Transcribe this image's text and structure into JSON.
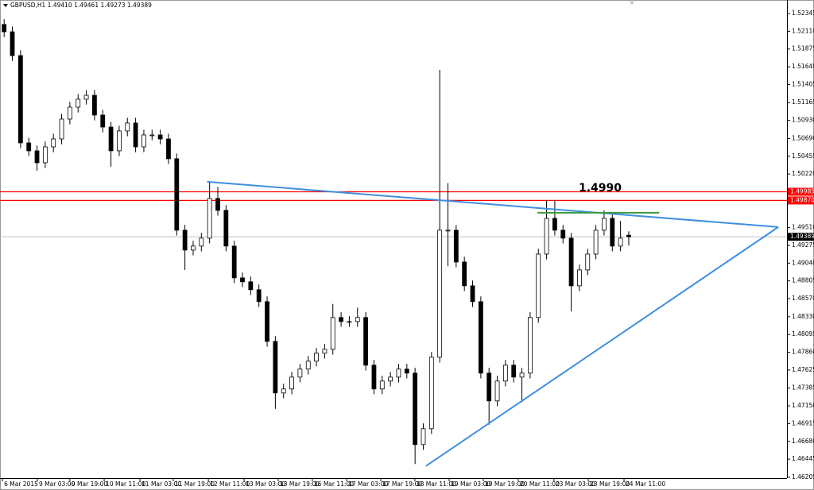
{
  "chart_data": {
    "type": "candlestick",
    "header": "GBPUSD,H1  1.49410 1.49461 1.49273 1.49389",
    "annotation": "1.4990",
    "xlim": [
      -2,
      381
    ],
    "ylim": [
      1.46194,
      1.52524
    ],
    "x": [
      0,
      4,
      8,
      12,
      16,
      20,
      24,
      28,
      32,
      36,
      40,
      44,
      48,
      52,
      56,
      60,
      64,
      68,
      72,
      76,
      80,
      84,
      88,
      92,
      96,
      100,
      104,
      108,
      112,
      116,
      120,
      124,
      128,
      132,
      136,
      140,
      144,
      148,
      152,
      156,
      160,
      164,
      168,
      172,
      176,
      180,
      184,
      188,
      192,
      196,
      200,
      204,
      208,
      212,
      216,
      220,
      224,
      228,
      232,
      236,
      240,
      244,
      248,
      252,
      256,
      260,
      264,
      268,
      272,
      276,
      280,
      284,
      288,
      292,
      296,
      300,
      304
    ],
    "open": [
      1.522,
      1.52103,
      1.51788,
      1.50632,
      1.50527,
      1.50369,
      1.50579,
      1.50684,
      1.50947,
      1.51105,
      1.5121,
      1.51262,
      1.51,
      1.50842,
      1.50527,
      1.5079,
      1.50895,
      1.50579,
      1.50737,
      1.50737,
      1.50684,
      1.50422,
      1.49476,
      1.49213,
      1.49266,
      1.49371,
      1.49896,
      1.49739,
      1.49266,
      1.48845,
      1.48793,
      1.48688,
      1.4853,
      1.48004,
      1.47321,
      1.47374,
      1.47531,
      1.47637,
      1.47742,
      1.47847,
      1.47899,
      1.4832,
      1.48267,
      1.48267,
      1.4832,
      1.47689,
      1.47374,
      1.47479,
      1.47531,
      1.47637,
      1.47584,
      1.46638,
      1.46848,
      1.47794,
      1.49476,
      1.49476,
      1.49055,
      1.4874,
      1.4853,
      1.47584,
      1.47216,
      1.47479,
      1.47689,
      1.47531,
      1.47584,
      1.4832,
      1.4916,
      1.49633,
      1.49476,
      1.49371,
      1.4874,
      1.4895,
      1.4916,
      1.49476,
      1.49633,
      1.49266,
      1.4941
    ],
    "high": [
      1.5227,
      1.52173,
      1.51858,
      1.50702,
      1.50597,
      1.50649,
      1.50754,
      1.51017,
      1.51175,
      1.5128,
      1.51332,
      1.51332,
      1.5107,
      1.50912,
      1.5086,
      1.50965,
      1.50965,
      1.50807,
      1.50807,
      1.50807,
      1.50754,
      1.50492,
      1.49546,
      1.49336,
      1.49441,
      1.50107,
      1.5005,
      1.49809,
      1.49336,
      1.48915,
      1.48863,
      1.48758,
      1.486,
      1.48074,
      1.47444,
      1.47601,
      1.47707,
      1.47812,
      1.47917,
      1.47969,
      1.485,
      1.4839,
      1.48337,
      1.4845,
      1.4839,
      1.47759,
      1.47549,
      1.47601,
      1.47707,
      1.47707,
      1.47654,
      1.46918,
      1.47864,
      1.51599,
      1.501,
      1.49546,
      1.49125,
      1.4881,
      1.486,
      1.47654,
      1.47549,
      1.47759,
      1.47759,
      1.47654,
      1.4839,
      1.4923,
      1.4987,
      1.4987,
      1.49546,
      1.49441,
      1.4902,
      1.4923,
      1.49546,
      1.4974,
      1.49703,
      1.496,
      1.49461
    ],
    "low": [
      1.52033,
      1.51718,
      1.50562,
      1.50457,
      1.50264,
      1.50299,
      1.50509,
      1.50614,
      1.50877,
      1.51035,
      1.5114,
      1.5093,
      1.50772,
      1.50317,
      1.50457,
      1.5072,
      1.50509,
      1.50509,
      1.50667,
      1.50614,
      1.50352,
      1.49406,
      1.4895,
      1.49143,
      1.49196,
      1.49301,
      1.49669,
      1.49196,
      1.48775,
      1.48723,
      1.48618,
      1.4846,
      1.47934,
      1.47111,
      1.47251,
      1.47304,
      1.47461,
      1.47567,
      1.47672,
      1.47777,
      1.47829,
      1.48197,
      1.48197,
      1.48197,
      1.47619,
      1.47304,
      1.47304,
      1.47409,
      1.47461,
      1.47514,
      1.4638,
      1.46568,
      1.46778,
      1.47724,
      1.49,
      1.48985,
      1.4867,
      1.4846,
      1.47514,
      1.46901,
      1.47146,
      1.47409,
      1.47461,
      1.472,
      1.47514,
      1.4825,
      1.4909,
      1.49406,
      1.49301,
      1.484,
      1.4867,
      1.4888,
      1.4909,
      1.49406,
      1.49196,
      1.49196,
      1.49273
    ],
    "close": [
      1.52103,
      1.51788,
      1.50632,
      1.50527,
      1.50369,
      1.50579,
      1.50684,
      1.50947,
      1.51105,
      1.5121,
      1.51262,
      1.51,
      1.50842,
      1.50527,
      1.5079,
      1.50895,
      1.50579,
      1.50737,
      1.50737,
      1.50684,
      1.50422,
      1.49476,
      1.49213,
      1.49266,
      1.49371,
      1.49896,
      1.49739,
      1.49266,
      1.48845,
      1.48793,
      1.48688,
      1.4853,
      1.48004,
      1.47321,
      1.47374,
      1.47531,
      1.47637,
      1.47742,
      1.47847,
      1.47899,
      1.4832,
      1.48267,
      1.48267,
      1.4832,
      1.47689,
      1.47374,
      1.47479,
      1.47531,
      1.47637,
      1.47584,
      1.46638,
      1.46848,
      1.47794,
      1.49476,
      1.49476,
      1.49055,
      1.4874,
      1.4853,
      1.47584,
      1.47216,
      1.47479,
      1.47689,
      1.47531,
      1.47584,
      1.4832,
      1.4916,
      1.49633,
      1.49476,
      1.49371,
      1.4874,
      1.4895,
      1.4916,
      1.49476,
      1.49633,
      1.49266,
      1.49371,
      1.49389
    ],
    "yticks": [
      1.52345,
      {
        "value": 1.5211,
        "label": "1.52110"
      },
      1.51875,
      {
        "value": 1.5164,
        "label": "1.51640"
      },
      1.51405,
      1.51165,
      {
        "value": 1.5093,
        "label": "1.50930"
      },
      {
        "value": 1.5069,
        "label": "1.50690"
      },
      1.50455,
      {
        "value": 1.5022,
        "label": "1.50220"
      },
      {
        "value": 1.4951,
        "label": "1.49510"
      },
      1.49275,
      {
        "value": 1.4904,
        "label": "1.49040"
      },
      1.48805,
      {
        "value": 1.4857,
        "label": "1.48570"
      },
      {
        "value": 1.4833,
        "label": "1.48330"
      },
      1.48095,
      {
        "value": 1.4786,
        "label": "1.47860"
      },
      1.47625,
      1.47385,
      {
        "value": 1.4715,
        "label": "1.47150"
      },
      1.46915,
      {
        "value": 1.4668,
        "label": "1.46680"
      },
      1.46445,
      1.46205
    ],
    "xticks": [
      {
        "value": -0.8,
        "label": "6 Mar 2015"
      },
      {
        "value": 16.2,
        "label": "9 Mar 03:00"
      },
      {
        "value": 32,
        "label": "9 Mar 19:00"
      },
      {
        "value": 48.7,
        "label": "10 Mar 11:00"
      },
      {
        "value": 66.1,
        "label": "11 Mar 03:00"
      },
      {
        "value": 82.3,
        "label": "11 Mar 19:00"
      },
      {
        "value": 99.4,
        "label": "12 Mar 11:00"
      },
      {
        "value": 116.8,
        "label": "13 Mar 03:00"
      },
      {
        "value": 133.4,
        "label": "13 Mar 19:00"
      },
      {
        "value": 150,
        "label": "16 Mar 11:00"
      },
      {
        "value": 166.7,
        "label": "17 Mar 03:00"
      },
      {
        "value": 183.3,
        "label": "17 Mar 19:00"
      },
      {
        "value": 199.9,
        "label": "18 Mar 11:00"
      },
      {
        "value": 216.6,
        "label": "19 Mar 03:00"
      },
      {
        "value": 233.2,
        "label": "19 Mar 19:00"
      },
      {
        "value": 250.2,
        "label": "20 Mar 11:00"
      },
      {
        "value": 267.6,
        "label": "23 Mar 03:00"
      },
      {
        "value": 284.3,
        "label": "23 Mar 19:00"
      },
      {
        "value": 301.7,
        "label": "24 Mar 11:00"
      }
    ],
    "hlines": [
      {
        "value": 1.49985,
        "color": "#ff0000"
      },
      {
        "value": 1.4987,
        "label": "1.49870",
        "color": "#ff0000"
      }
    ],
    "price_line": {
      "value": 1.49389,
      "color": "#c0c0c0"
    },
    "trendlines": [
      {
        "color": "#3d8fe0",
        "x": [
          98.8,
          376.8
        ],
        "y": [
          1.50117,
          1.49518
        ]
      },
      {
        "color": "#3d8fe0",
        "x": [
          205.3,
          376.8
        ],
        "y": [
          1.46354,
          1.49518
        ]
      },
      {
        "color": "#3a9a3a",
        "x": [
          259.5,
          318.8
        ],
        "y": [
          1.49707,
          1.49707
        ]
      }
    ],
    "up_color": "#ffffff",
    "down_color": "#000000"
  }
}
